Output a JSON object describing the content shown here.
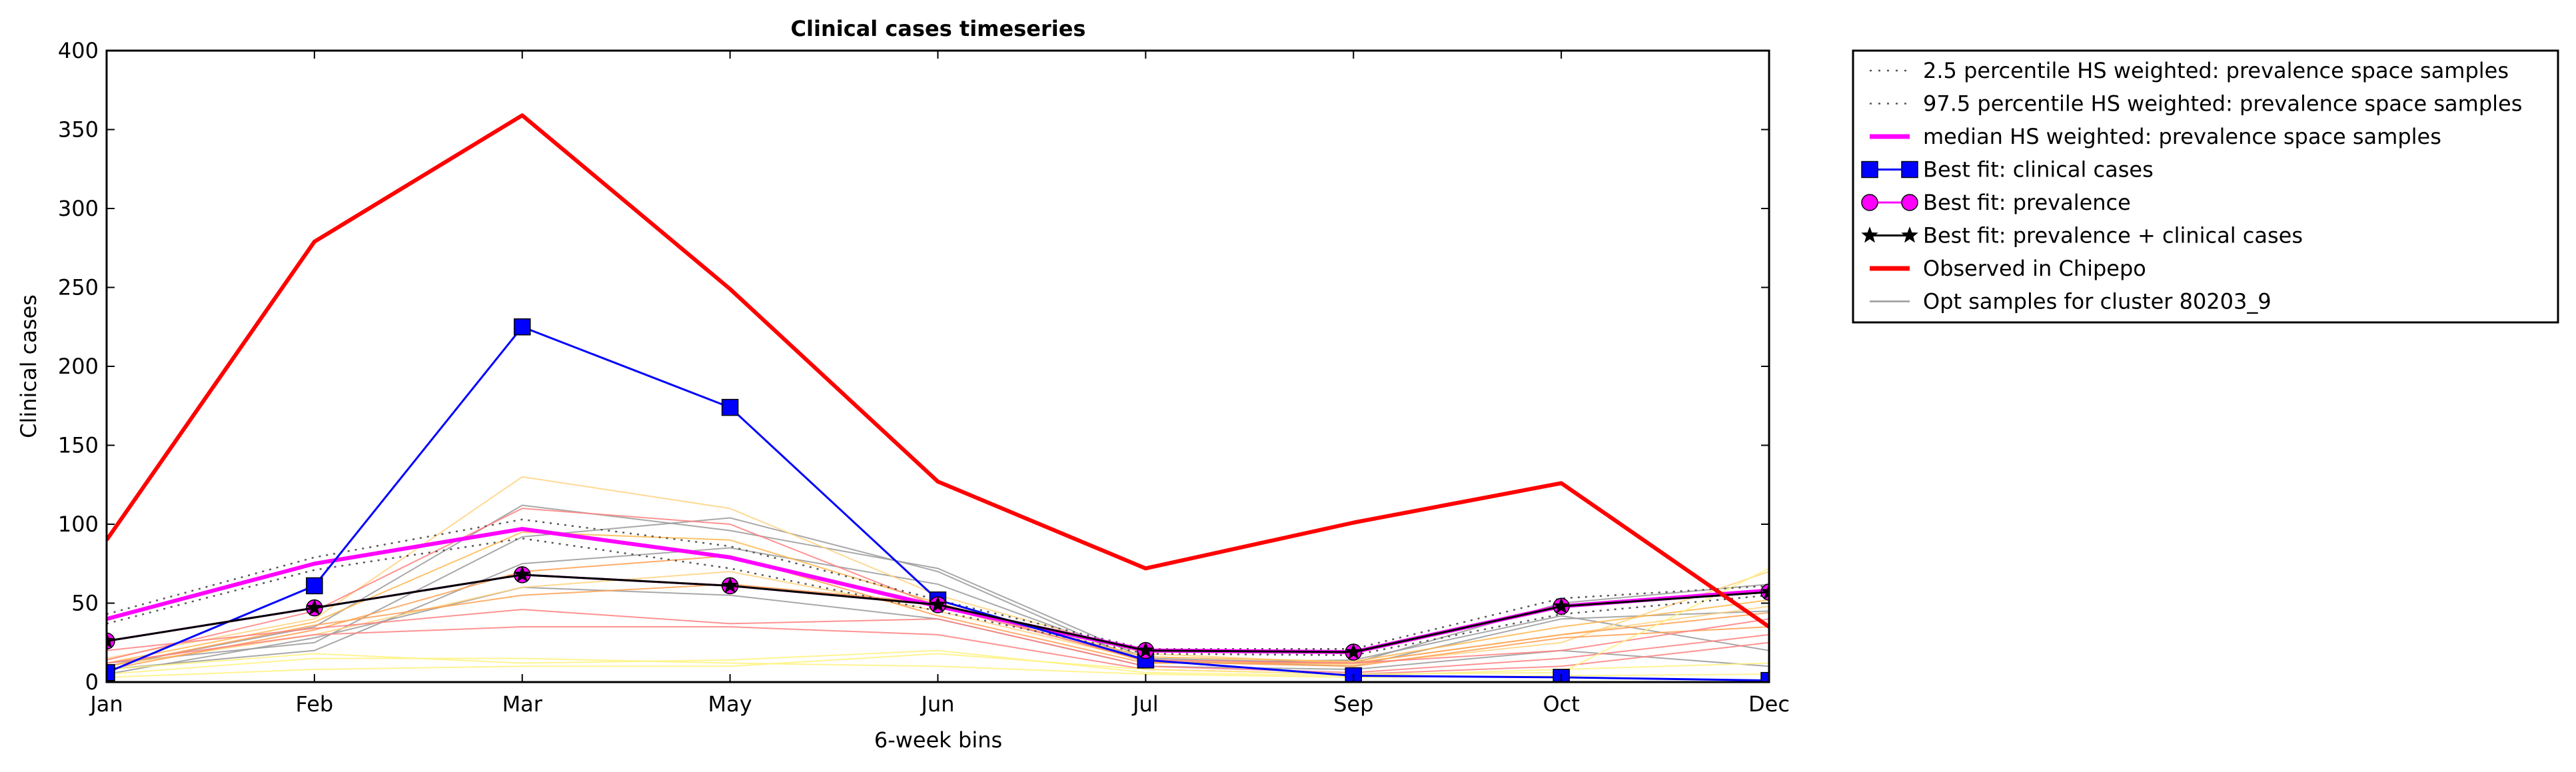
{
  "chart_data": {
    "type": "line",
    "title": "Clinical cases timeseries",
    "xlabel": "6-week bins",
    "ylabel": "Clinical cases",
    "categories": [
      "Jan",
      "Feb",
      "Mar",
      "May",
      "Jun",
      "Jul",
      "Sep",
      "Oct",
      "Dec"
    ],
    "ylim": [
      0,
      400
    ],
    "yticks": [
      0,
      50,
      100,
      150,
      200,
      250,
      300,
      350,
      400
    ],
    "grid": false,
    "legend_position": "outside-right",
    "legend": [
      "2.5 percentile HS weighted: prevalence space samples",
      "97.5 percentile HS weighted: prevalence space samples",
      "median HS weighted: prevalence space samples",
      "Best fit: clinical cases",
      "Best fit: prevalence",
      "Best fit: prevalence + clinical cases",
      "Observed in Chipepo",
      "Opt samples for cluster 80203_9"
    ],
    "series": [
      {
        "name": "2.5 percentile HS weighted: prevalence space samples",
        "style": "dotted",
        "color": "#555555",
        "values": [
          37,
          71,
          91,
          72,
          45,
          18,
          17,
          43,
          55
        ]
      },
      {
        "name": "97.5 percentile HS weighted: prevalence space samples",
        "style": "dotted",
        "color": "#555555",
        "values": [
          43,
          79,
          103,
          86,
          52,
          21,
          21,
          53,
          61
        ]
      },
      {
        "name": "median HS weighted: prevalence space samples",
        "style": "solid-thick",
        "color": "#ff00ff",
        "values": [
          40,
          75,
          97,
          79,
          48,
          20,
          19,
          48,
          58
        ]
      },
      {
        "name": "Best fit: clinical cases",
        "style": "line-square",
        "color": "#0000ff",
        "values": [
          6,
          61,
          225,
          174,
          52,
          14,
          4,
          3,
          1
        ]
      },
      {
        "name": "Best fit: prevalence",
        "style": "line-circle",
        "color": "#ff00ff",
        "values": [
          26,
          47,
          68,
          61,
          49,
          20,
          19,
          48,
          57
        ]
      },
      {
        "name": "Best fit: prevalence + clinical cases",
        "style": "line-star",
        "color": "#000000",
        "values": [
          26,
          47,
          68,
          61,
          49,
          20,
          19,
          48,
          57
        ]
      },
      {
        "name": "Observed in Chipepo",
        "style": "solid-thick",
        "color": "#ff0000",
        "values": [
          90,
          279,
          359,
          249,
          127,
          72,
          101,
          126,
          35
        ]
      },
      {
        "name": "Opt samples for cluster 80203_9",
        "style": "thin",
        "color": "#999999",
        "samples": [
          {
            "color": "#999999",
            "values": [
              12,
              25,
              92,
              104,
              70,
              12,
              14,
              42,
              20
            ]
          },
          {
            "color": "#999999",
            "values": [
              10,
              35,
              112,
              96,
              72,
              15,
              12,
              50,
              62
            ]
          },
          {
            "color": "#999999",
            "values": [
              8,
              20,
              75,
              85,
              62,
              14,
              10,
              40,
              45
            ]
          },
          {
            "color": "#999999",
            "values": [
              5,
              28,
              60,
              55,
              40,
              10,
              8,
              20,
              10
            ]
          },
          {
            "color": "#ffd27f",
            "values": [
              15,
              40,
              130,
              110,
              55,
              18,
              12,
              30,
              48
            ]
          },
          {
            "color": "#ffd27f",
            "values": [
              10,
              30,
              60,
              70,
              45,
              14,
              11,
              25,
              70
            ]
          },
          {
            "color": "#ffb74d",
            "values": [
              12,
              38,
              95,
              90,
              50,
              16,
              13,
              35,
              52
            ]
          },
          {
            "color": "#ff9f50",
            "values": [
              8,
              33,
              70,
              80,
              42,
              12,
              12,
              30,
              44
            ]
          },
          {
            "color": "#ff9f50",
            "values": [
              10,
              36,
              55,
              62,
              50,
              13,
              10,
              28,
              35
            ]
          },
          {
            "color": "#ff7f7f",
            "values": [
              14,
              45,
              110,
              100,
              48,
              14,
              12,
              20,
              40
            ]
          },
          {
            "color": "#ff7f7f",
            "values": [
              20,
              34,
              46,
              37,
              40,
              10,
              6,
              15,
              30
            ]
          },
          {
            "color": "#ff7f7f",
            "values": [
              12,
              30,
              35,
              35,
              30,
              8,
              5,
              10,
              25
            ]
          },
          {
            "color": "#fff27f",
            "values": [
              5,
              15,
              15,
              12,
              10,
              5,
              3,
              4,
              5
            ]
          },
          {
            "color": "#fff27f",
            "values": [
              3,
              8,
              10,
              10,
              18,
              8,
              5,
              6,
              72
            ]
          },
          {
            "color": "#fff27f",
            "values": [
              8,
              18,
              12,
              14,
              20,
              6,
              4,
              8,
              12
            ]
          }
        ]
      }
    ]
  }
}
